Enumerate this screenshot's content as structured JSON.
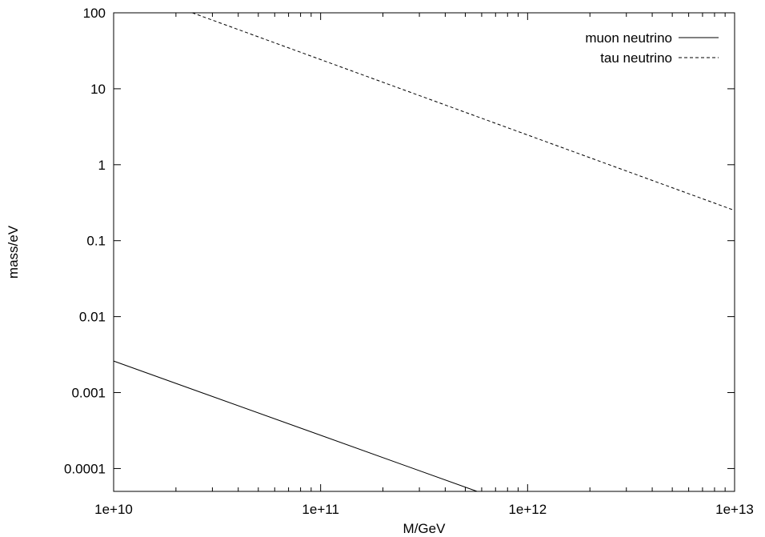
{
  "chart_data": {
    "type": "line",
    "title": "",
    "xlabel": "M/GeV",
    "ylabel": "mass/eV",
    "x_scale": "log",
    "y_scale": "log",
    "xlim": [
      10000000000.0,
      10000000000000.0
    ],
    "ylim": [
      5e-05,
      100
    ],
    "grid": false,
    "legend_position": "top-right",
    "x_ticks": [
      {
        "value": 10000000000.0,
        "label": "1e+10"
      },
      {
        "value": 100000000000.0,
        "label": "1e+11"
      },
      {
        "value": 1000000000000.0,
        "label": "1e+12"
      },
      {
        "value": 10000000000000.0,
        "label": "1e+13"
      }
    ],
    "y_ticks": [
      {
        "value": 0.0001,
        "label": "0.0001"
      },
      {
        "value": 0.001,
        "label": "0.001"
      },
      {
        "value": 0.01,
        "label": "0.01"
      },
      {
        "value": 0.1,
        "label": "0.1"
      },
      {
        "value": 1,
        "label": "1"
      },
      {
        "value": 10,
        "label": "10"
      },
      {
        "value": 100,
        "label": "100"
      }
    ],
    "series": [
      {
        "name": "muon neutrino",
        "style": "solid",
        "color": "#000000",
        "x": [
          10000000000.0,
          570000000000.0
        ],
        "y": [
          0.0026,
          5e-05
        ]
      },
      {
        "name": "tau neutrino",
        "style": "dashed",
        "color": "#000000",
        "x": [
          24000000000.0,
          10000000000000.0
        ],
        "y": [
          100,
          0.25
        ]
      }
    ]
  }
}
